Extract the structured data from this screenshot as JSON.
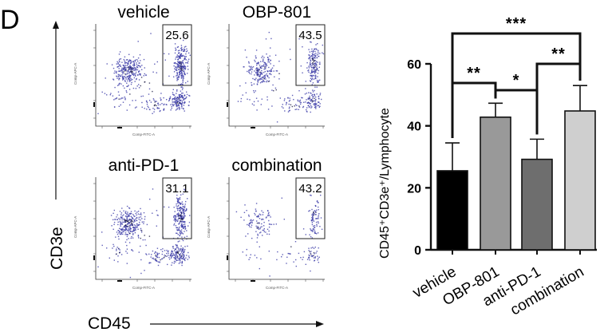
{
  "panel_label": "D",
  "flow": {
    "plots": [
      {
        "title": "vehicle",
        "gate_value": "25.6",
        "density": "high",
        "low_cluster": "strong"
      },
      {
        "title": "OBP-801",
        "gate_value": "43.5",
        "density": "medium",
        "low_cluster": "medium"
      },
      {
        "title": "anti-PD-1",
        "gate_value": "31.1",
        "density": "high",
        "low_cluster": "strong"
      },
      {
        "title": "combination",
        "gate_value": "43.2",
        "density": "low",
        "low_cluster": "weak"
      }
    ],
    "x_axis_label": "CD45",
    "y_axis_label": "CD3e",
    "inner_x_label": "Comp-FITC-A",
    "inner_y_label": "Comp-APC-A",
    "dot_color": "#3a3aa8"
  },
  "chart_data": {
    "type": "bar",
    "categories": [
      "vehicle",
      "OBP-801",
      "anti-PD-1",
      "combination"
    ],
    "values": [
      25.5,
      42.8,
      29.2,
      44.8
    ],
    "errors": [
      9.0,
      4.5,
      6.5,
      8.2
    ],
    "colors": [
      "#000000",
      "#999999",
      "#6e6e6e",
      "#cfcfcf"
    ],
    "ylabel": "CD45⁺CD3e⁺/Lymphocyte",
    "ylim": [
      0,
      60
    ],
    "yticks": [
      0,
      20,
      40,
      60
    ],
    "significance": [
      {
        "from": 0,
        "to": 3,
        "label": "***"
      },
      {
        "from": 0,
        "to": 1,
        "label": "**"
      },
      {
        "from": 1,
        "to": 2,
        "label": "*"
      },
      {
        "from": 2,
        "to": 3,
        "label": "**"
      }
    ]
  }
}
